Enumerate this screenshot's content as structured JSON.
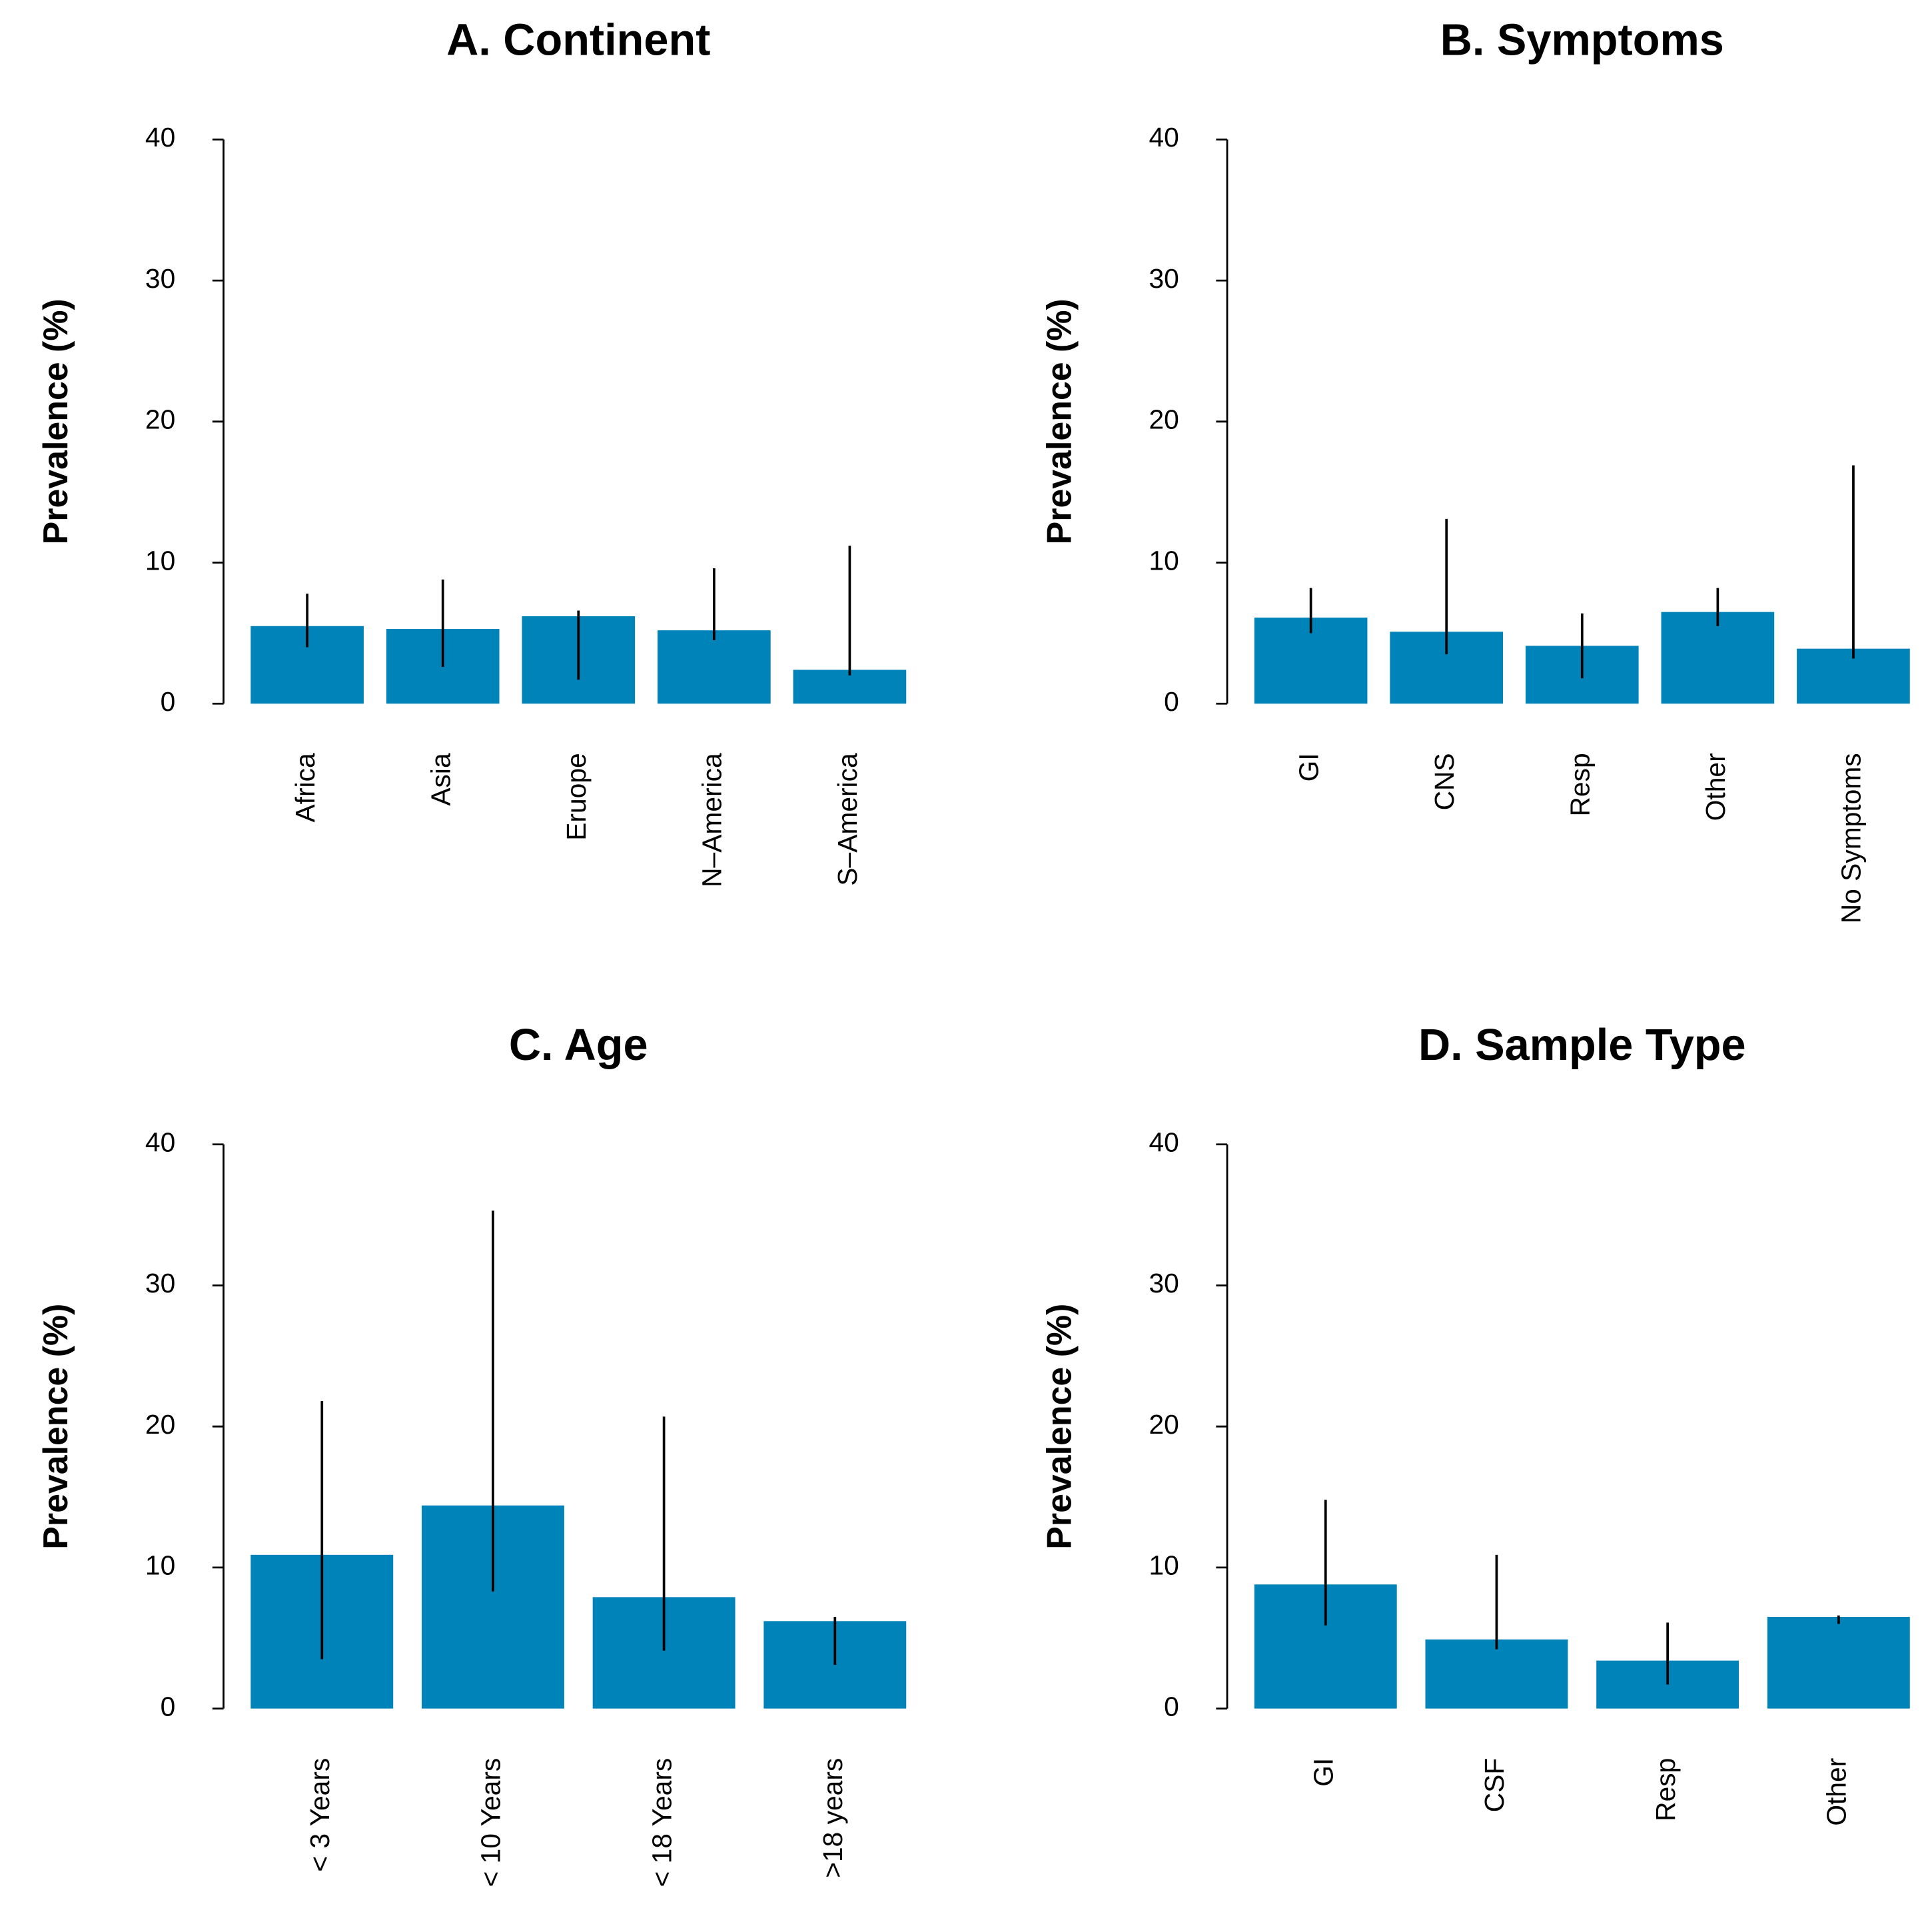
{
  "chart_data": [
    {
      "type": "bar",
      "title": "A. Continent",
      "ylabel": "Prevalence (%)",
      "categories": [
        "Africa",
        "Asia",
        "Eruope",
        "N–America",
        "S–America"
      ],
      "values": [
        5.5,
        5.3,
        6.2,
        5.2,
        2.4
      ],
      "lower": [
        4.0,
        2.6,
        1.7,
        4.5,
        2.0
      ],
      "upper": [
        7.8,
        8.8,
        6.6,
        9.6,
        11.2
      ],
      "color": "#0083b8",
      "ylim": [
        0,
        40
      ],
      "yticks": [
        0,
        10,
        20,
        30,
        40
      ]
    },
    {
      "type": "bar",
      "title": "B. Symptoms",
      "ylabel": "Prevalence (%)",
      "categories": [
        "GI",
        "CNS",
        "Resp",
        "Other",
        "No Symptoms"
      ],
      "values": [
        6.1,
        5.1,
        4.1,
        6.5,
        3.9
      ],
      "lower": [
        5.0,
        3.5,
        1.8,
        5.5,
        3.2
      ],
      "upper": [
        8.2,
        13.1,
        6.4,
        8.2,
        16.9
      ],
      "color": "#0083b8",
      "ylim": [
        0,
        40
      ],
      "yticks": [
        0,
        10,
        20,
        30,
        40
      ]
    },
    {
      "type": "bar",
      "title": "C. Age",
      "ylabel": "Prevalence (%)",
      "categories": [
        "< 3 Years",
        "< 10 Years",
        "< 18 Years",
        ">18 years"
      ],
      "values": [
        10.9,
        14.4,
        7.9,
        6.2
      ],
      "lower": [
        3.5,
        8.3,
        4.1,
        3.1
      ],
      "upper": [
        21.8,
        35.3,
        20.7,
        6.5
      ],
      "color": "#0083b8",
      "ylim": [
        0,
        40
      ],
      "yticks": [
        0,
        10,
        20,
        30,
        40
      ]
    },
    {
      "type": "bar",
      "title": "D. Sample Type",
      "ylabel": "Prevalence (%)",
      "categories": [
        "GI",
        "CSF",
        "Resp",
        "Other"
      ],
      "values": [
        8.8,
        4.9,
        3.4,
        6.5
      ],
      "lower": [
        5.9,
        4.2,
        1.7,
        6.0
      ],
      "upper": [
        14.8,
        10.9,
        6.1,
        6.6
      ],
      "color": "#0083b8",
      "ylim": [
        0,
        40
      ],
      "yticks": [
        0,
        10,
        20,
        30,
        40
      ]
    }
  ]
}
